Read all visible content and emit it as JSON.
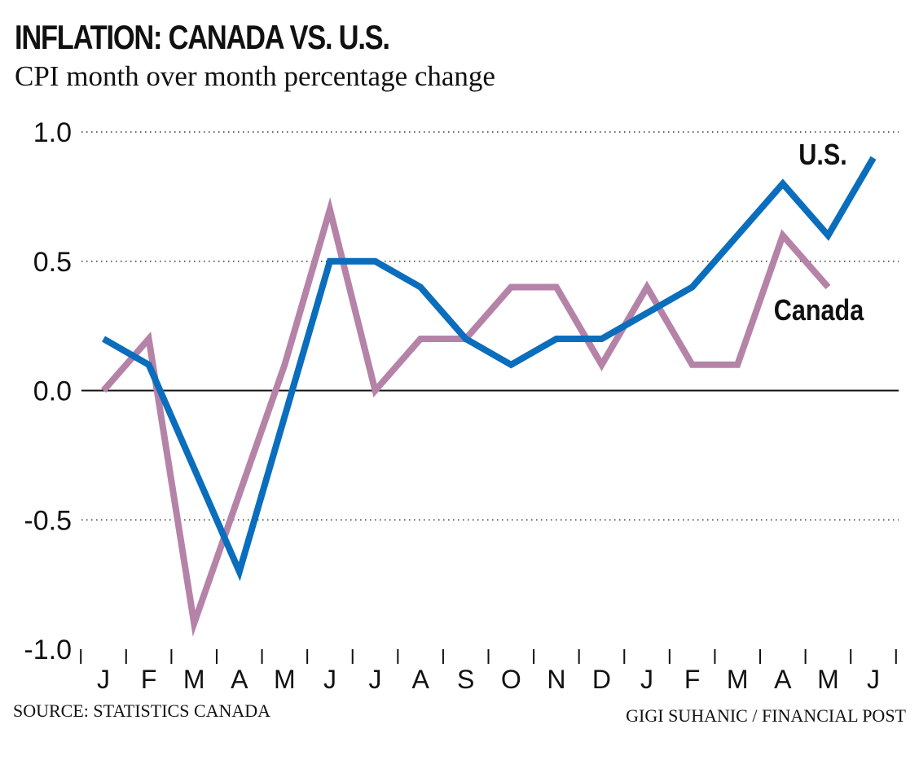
{
  "header": {
    "title": "INFLATION: CANADA VS. U.S.",
    "subtitle": "CPI month over month percentage change"
  },
  "footer": {
    "source": "SOURCE: STATISTICS CANADA",
    "credit": "GIGI SUHANIC  / FINANCIAL POST"
  },
  "chart_data": {
    "type": "line",
    "title": "INFLATION: CANADA VS. U.S.",
    "subtitle": "CPI month over month percentage change",
    "categories": [
      "J",
      "F",
      "M",
      "A",
      "M",
      "J",
      "J",
      "A",
      "S",
      "O",
      "N",
      "D",
      "J",
      "F",
      "M",
      "A",
      "M",
      "J"
    ],
    "yticks": [
      "1.0",
      "0.5",
      "0.0",
      "-0.5",
      "-1.0"
    ],
    "ylim": [
      -1.0,
      1.0
    ],
    "grid": true,
    "series": [
      {
        "name": "U.S.",
        "color": "#0a6ebd",
        "values": [
          0.2,
          0.1,
          -0.3,
          -0.7,
          -0.1,
          0.5,
          0.5,
          0.4,
          0.2,
          0.1,
          0.2,
          0.2,
          0.3,
          0.4,
          0.6,
          0.8,
          0.6,
          0.9
        ]
      },
      {
        "name": "Canada",
        "color": "#b583a8",
        "values": [
          0.0,
          0.2,
          -0.9,
          -0.4,
          0.1,
          0.7,
          0.0,
          0.2,
          0.2,
          0.4,
          0.4,
          0.1,
          0.4,
          0.1,
          0.1,
          0.6,
          0.4,
          null
        ]
      }
    ]
  }
}
